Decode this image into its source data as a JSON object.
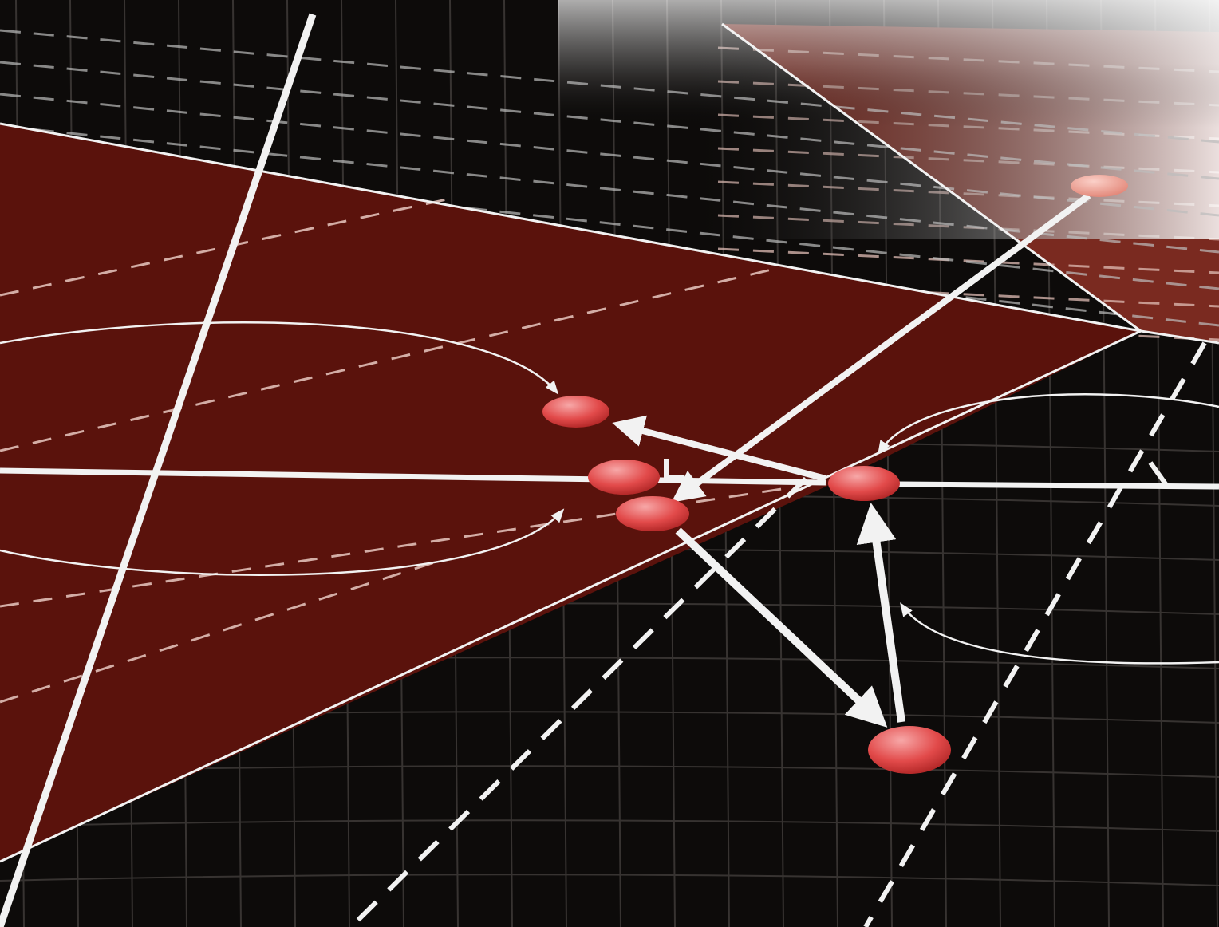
{
  "diagram": {
    "colors": {
      "background": "#0d0b0a",
      "plane_fill": "#5a120c",
      "upper_plane_fill": "#7a2a20",
      "line": "#f2f2f2",
      "grid": "#5a5552",
      "node": "#e24a4a",
      "node_highlight": "#f7a8a8"
    },
    "nodes": [
      {
        "id": "node-far"
      },
      {
        "id": "node-upper-left"
      },
      {
        "id": "node-center-a"
      },
      {
        "id": "node-center-b"
      },
      {
        "id": "node-right"
      },
      {
        "id": "node-bottom"
      }
    ],
    "connections": [
      {
        "from": "node-far",
        "to": "node-center-b"
      },
      {
        "from": "node-right",
        "to": "node-upper-left"
      },
      {
        "from": "node-center-b",
        "to": "node-bottom"
      },
      {
        "from": "node-bottom",
        "to": "node-right"
      }
    ]
  }
}
